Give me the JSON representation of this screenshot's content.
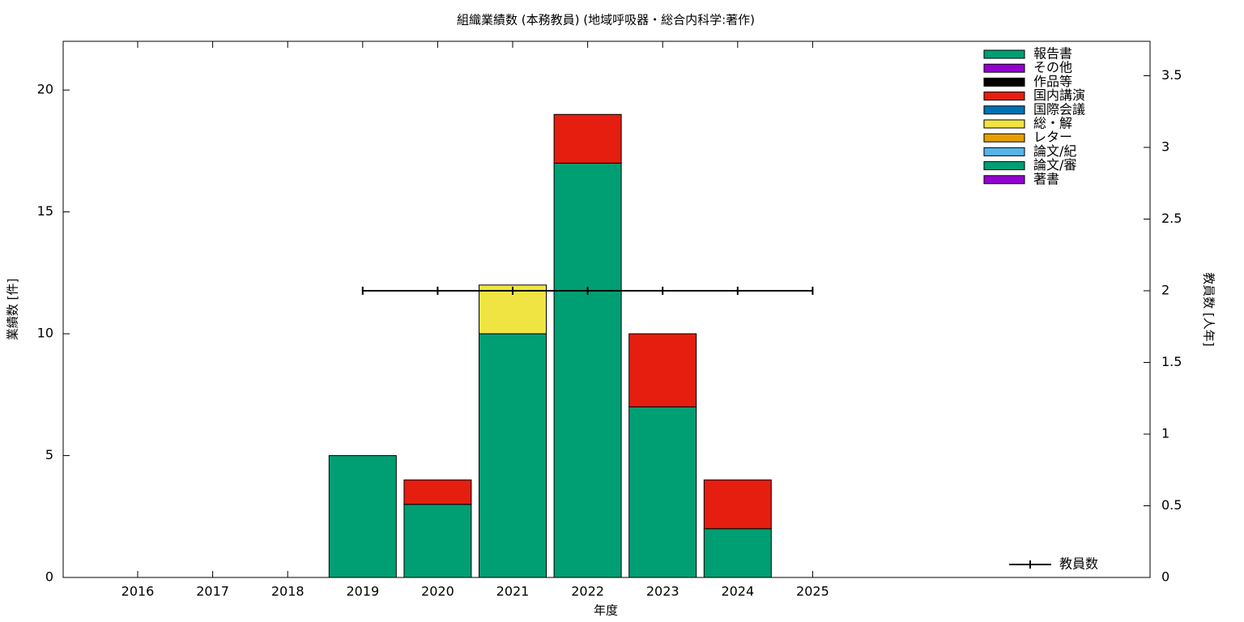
{
  "chart_data": {
    "type": "bar",
    "stacked": true,
    "title": "組織業績数 (本務教員) (地域呼吸器・総合内科学:著作)",
    "x_label": "年度",
    "y_label": "業績数 [件]",
    "y2_label": "教員数 [人年]",
    "categories": [
      "2016",
      "2017",
      "2018",
      "2019",
      "2020",
      "2021",
      "2022",
      "2023",
      "2024",
      "2025"
    ],
    "series": [
      {
        "name": "報告書",
        "color": "#009e73",
        "values": [
          0,
          0,
          0,
          0,
          0,
          0,
          0,
          0,
          0,
          0
        ]
      },
      {
        "name": "その他",
        "color": "#9400d3",
        "values": [
          0,
          0,
          0,
          0,
          0,
          0,
          0,
          0,
          0,
          0
        ]
      },
      {
        "name": "作品等",
        "color": "#000000",
        "values": [
          0,
          0,
          0,
          0,
          0,
          0,
          0,
          0,
          0,
          0
        ]
      },
      {
        "name": "国内講演",
        "color": "#e51e10",
        "values": [
          0,
          0,
          0,
          0,
          1,
          0,
          2,
          3,
          2,
          0
        ]
      },
      {
        "name": "国際会議",
        "color": "#0072b2",
        "values": [
          0,
          0,
          0,
          0,
          0,
          0,
          0,
          0,
          0,
          0
        ]
      },
      {
        "name": "総・解",
        "color": "#f0e442",
        "values": [
          0,
          0,
          0,
          0,
          0,
          2,
          0,
          0,
          0,
          0
        ]
      },
      {
        "name": "レター",
        "color": "#e69f00",
        "values": [
          0,
          0,
          0,
          0,
          0,
          0,
          0,
          0,
          0,
          0
        ]
      },
      {
        "name": "論文/紀",
        "color": "#56b4e9",
        "values": [
          0,
          0,
          0,
          0,
          0,
          0,
          0,
          0,
          0,
          0
        ]
      },
      {
        "name": "論文/審",
        "color": "#009e73",
        "values": [
          0,
          0,
          0,
          5,
          3,
          10,
          17,
          7,
          2,
          0
        ]
      },
      {
        "name": "著書",
        "color": "#9400d3",
        "values": [
          0,
          0,
          0,
          0,
          0,
          0,
          0,
          0,
          0,
          0
        ]
      },
      {
        "name": "教員数",
        "type": "line",
        "axis": "y2",
        "color": "#000000",
        "values": [
          null,
          null,
          null,
          2,
          2,
          2,
          2,
          2,
          2,
          2
        ]
      }
    ],
    "ylim": [
      0,
      22
    ],
    "yticks": [
      0,
      5,
      10,
      15,
      20
    ],
    "y2lim": [
      0,
      3.74
    ],
    "y2ticks": [
      0,
      0.5,
      1,
      1.5,
      2,
      2.5,
      3,
      3.5
    ],
    "grid": false,
    "legend": "upper right"
  }
}
